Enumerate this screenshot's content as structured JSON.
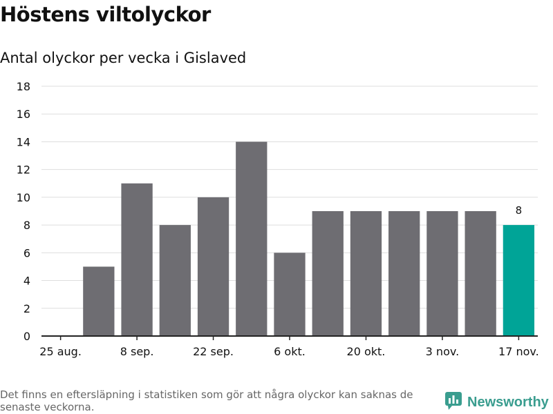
{
  "title": "Höstens viltolyckor",
  "subtitle": "Antal olyckor per vecka i Gislaved",
  "footnote": "Det finns en eftersläpning i statistiken som gör att några olyckor kan saknas de senaste veckorna.",
  "brand": "Newsworthy",
  "colors": {
    "bar": "#6e6d72",
    "highlight": "#00a497",
    "grid": "#dddddd",
    "brand": "#3a9d8f"
  },
  "chart_data": {
    "type": "bar",
    "categories": [
      "25 aug.",
      "1 sep.",
      "8 sep.",
      "15 sep.",
      "22 sep.",
      "29 sep.",
      "6 okt.",
      "13 okt.",
      "20 okt.",
      "27 okt.",
      "3 nov.",
      "10 nov.",
      "17 nov."
    ],
    "values": [
      null,
      5,
      11,
      8,
      10,
      14,
      6,
      9,
      9,
      9,
      9,
      9,
      8
    ],
    "xticks": [
      "25 aug.",
      "8 sep.",
      "22 sep.",
      "6 okt.",
      "20 okt.",
      "3 nov.",
      "17 nov."
    ],
    "yticks": [
      0,
      2,
      4,
      6,
      8,
      10,
      12,
      14,
      16,
      18
    ],
    "ylim": [
      0,
      18
    ],
    "highlight_index": 12,
    "data_labels": [
      {
        "index": 12,
        "text": "8"
      }
    ],
    "title": "Höstens viltolyckor",
    "subtitle": "Antal olyckor per vecka i Gislaved",
    "grid": true,
    "legend": "none"
  }
}
